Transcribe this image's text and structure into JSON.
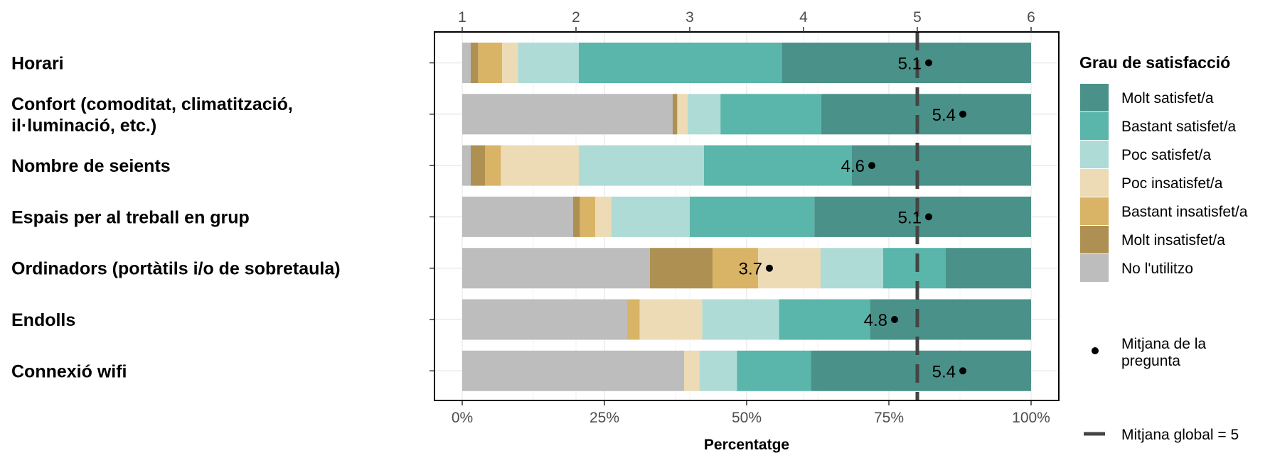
{
  "chart_data": {
    "type": "bar",
    "orientation": "horizontal",
    "stacked": true,
    "xlabel": "Percentatge",
    "x_ticks_bottom": [
      "0%",
      "25%",
      "50%",
      "75%",
      "100%"
    ],
    "x_tick_values_bottom": [
      0,
      25,
      50,
      75,
      100
    ],
    "x_ticks_top": [
      "1",
      "2",
      "3",
      "4",
      "5",
      "6"
    ],
    "x_tick_values_top": [
      1,
      2,
      3,
      4,
      5,
      6
    ],
    "xlim": [
      0,
      100
    ],
    "top_axis_range": [
      1,
      6
    ],
    "grid": true,
    "legend_position": "right",
    "legend_title": "Grau de satisfacció",
    "categories": [
      "Horari",
      "Confort (comoditat, climatització, il·luminació, etc.)",
      "Nombre de seients",
      "Espais per al treball en grup",
      "Ordinadors (portàtils i/o de sobretaula)",
      "Endolls",
      "Connexió wifi"
    ],
    "category_lines": [
      [
        "Horari"
      ],
      [
        "Confort (comoditat, climatització,",
        "il·luminació, etc.)"
      ],
      [
        "Nombre de seients"
      ],
      [
        "Espais per al treball en grup"
      ],
      [
        "Ordinadors (portàtils i/o de sobretaula)"
      ],
      [
        "Endolls"
      ],
      [
        "Connexió wifi"
      ]
    ],
    "series": [
      {
        "name": "No l'utilitzo",
        "color": "#bdbdbd",
        "values": [
          1.5,
          37,
          1.5,
          19.5,
          33,
          29,
          39
        ]
      },
      {
        "name": "Molt insatisfet/a",
        "color": "#ae9152",
        "values": [
          1.3,
          0.8,
          2.5,
          1.2,
          11,
          0,
          0
        ]
      },
      {
        "name": "Bastant insatisfet/a",
        "color": "#d9b467",
        "values": [
          4.2,
          0,
          2.8,
          2.7,
          8,
          2.2,
          0
        ]
      },
      {
        "name": "Poc insatisfet/a",
        "color": "#ecdbb5",
        "values": [
          2.8,
          1.8,
          13.7,
          2.8,
          11,
          11,
          2.7
        ]
      },
      {
        "name": "Poc satisfet/a",
        "color": "#aedbd6",
        "values": [
          10.7,
          5.8,
          22,
          13.8,
          11,
          13.5,
          6.6
        ]
      },
      {
        "name": "Bastant satisfet/a",
        "color": "#5ab5aa",
        "values": [
          35.7,
          17.7,
          26,
          21.9,
          11,
          16,
          13
        ]
      },
      {
        "name": "Molt satisfet/a",
        "color": "#4a9289",
        "values": [
          43.8,
          36.9,
          31.5,
          38.1,
          15,
          28.3,
          38.7
        ]
      }
    ],
    "legend_order": [
      "Molt satisfet/a",
      "Bastant satisfet/a",
      "Poc satisfet/a",
      "Poc insatisfet/a",
      "Bastant insatisfet/a",
      "Molt insatisfet/a",
      "No l'utilitzo"
    ],
    "question_means": [
      5.1,
      5.4,
      4.6,
      5.1,
      3.7,
      4.8,
      5.4
    ],
    "question_mean_labels": [
      "5.1",
      "5.4",
      "4.6",
      "5.1",
      "3.7",
      "4.8",
      "5.4"
    ],
    "global_mean": 5,
    "legend_extra": {
      "question_mean_label": [
        "Mitjana de la",
        "pregunta"
      ],
      "global_mean_label": "Mitjana global = ",
      "global_mean_value": "5"
    }
  }
}
